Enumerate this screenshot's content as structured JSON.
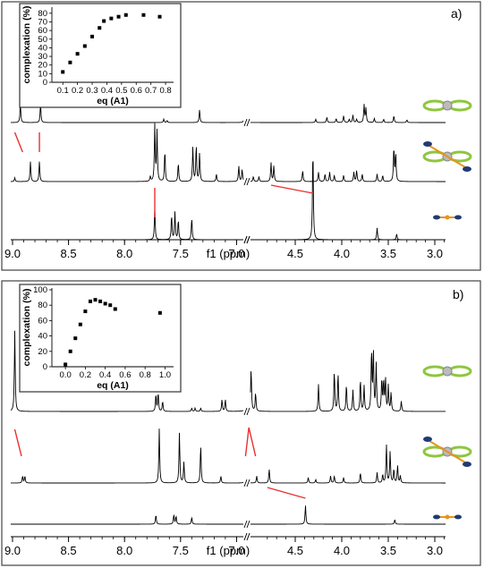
{
  "chart_data": [
    {
      "type": "line",
      "panel": "a)",
      "xlabel": "f1 (ppm)",
      "x_reversed": true,
      "axis_break": [
        4.85,
        6.65
      ],
      "xticks": [
        9.0,
        8.5,
        8.0,
        7.5,
        7.0,
        6.5,
        4.5,
        4.0,
        3.5,
        3.0
      ],
      "xtick_labels": [
        "9.0",
        "8.5",
        "8.0",
        "7.5",
        "7.0",
        "f1 (ppm)",
        "4.5",
        "4.0",
        "3.5",
        "3.0"
      ],
      "series": [
        {
          "peaks": [
            {
              "x": 8.93,
              "h": 0.55
            },
            {
              "x": 8.75,
              "h": 0.55
            },
            {
              "x": 7.65,
              "h": 0.1
            },
            {
              "x": 7.62,
              "h": 0.06
            },
            {
              "x": 7.33,
              "h": 0.38
            },
            {
              "x": 6.93,
              "h": 0.3
            },
            {
              "x": 4.28,
              "h": 0.1
            },
            {
              "x": 4.16,
              "h": 0.16
            },
            {
              "x": 4.06,
              "h": 0.12
            },
            {
              "x": 3.98,
              "h": 0.2
            },
            {
              "x": 3.92,
              "h": 0.1
            },
            {
              "x": 3.88,
              "h": 0.22
            },
            {
              "x": 3.84,
              "h": 0.1
            },
            {
              "x": 3.76,
              "h": 0.52
            },
            {
              "x": 3.74,
              "h": 0.42
            },
            {
              "x": 3.65,
              "h": 0.12
            },
            {
              "x": 3.55,
              "h": 0.1
            },
            {
              "x": 3.44,
              "h": 0.2
            },
            {
              "x": 3.3,
              "h": 0.08
            }
          ]
        },
        {
          "peaks": [
            {
              "x": 8.98,
              "h": 0.06
            },
            {
              "x": 8.84,
              "h": 0.32
            },
            {
              "x": 8.76,
              "h": 0.32
            },
            {
              "x": 7.77,
              "h": 0.08
            },
            {
              "x": 7.73,
              "h": 0.9
            },
            {
              "x": 7.71,
              "h": 0.8
            },
            {
              "x": 7.64,
              "h": 0.5
            },
            {
              "x": 7.52,
              "h": 0.3
            },
            {
              "x": 7.39,
              "h": 0.55
            },
            {
              "x": 7.36,
              "h": 0.58
            },
            {
              "x": 7.33,
              "h": 0.45
            },
            {
              "x": 7.18,
              "h": 0.12
            },
            {
              "x": 6.98,
              "h": 0.25
            },
            {
              "x": 6.95,
              "h": 0.2
            },
            {
              "x": 6.85,
              "h": 0.08
            },
            {
              "x": 6.8,
              "h": 0.08
            },
            {
              "x": 4.76,
              "h": 0.3
            },
            {
              "x": 4.73,
              "h": 0.25
            },
            {
              "x": 4.42,
              "h": 0.18
            },
            {
              "x": 4.25,
              "h": 0.15
            },
            {
              "x": 4.18,
              "h": 0.12
            },
            {
              "x": 4.13,
              "h": 0.15
            },
            {
              "x": 4.08,
              "h": 0.1
            },
            {
              "x": 3.98,
              "h": 0.1
            },
            {
              "x": 3.87,
              "h": 0.15
            },
            {
              "x": 3.84,
              "h": 0.18
            },
            {
              "x": 3.78,
              "h": 0.12
            },
            {
              "x": 3.62,
              "h": 0.12
            },
            {
              "x": 3.56,
              "h": 0.1
            },
            {
              "x": 3.44,
              "h": 0.55
            },
            {
              "x": 3.42,
              "h": 0.45
            }
          ]
        },
        {
          "peaks": [
            {
              "x": 7.73,
              "h": 0.32
            },
            {
              "x": 7.58,
              "h": 0.25
            },
            {
              "x": 7.55,
              "h": 0.28
            },
            {
              "x": 7.52,
              "h": 0.2
            },
            {
              "x": 7.4,
              "h": 0.22
            },
            {
              "x": 4.31,
              "h": 0.95
            },
            {
              "x": 3.62,
              "h": 0.12
            },
            {
              "x": 3.41,
              "h": 0.06
            }
          ]
        }
      ],
      "connectors": [
        {
          "from": 8.98,
          "to": 8.91
        },
        {
          "from": 8.76,
          "to": 8.76
        },
        {
          "from": 7.73,
          "to": 7.73
        },
        {
          "from": 4.76,
          "to": 4.31
        }
      ],
      "inset": {
        "type": "scatter",
        "xlabel": "eq (A1)",
        "ylabel": "complexation (%)",
        "xlim": [
          0.05,
          0.83
        ],
        "ylim": [
          0,
          85
        ],
        "xticks": [
          "0.1",
          "0.2",
          "0.3",
          "0.4",
          "0.5",
          "0.6",
          "0.7",
          "0.8"
        ],
        "yticks": [
          "0",
          "10",
          "20",
          "30",
          "40",
          "50",
          "60",
          "70",
          "80"
        ],
        "x": [
          0.1,
          0.15,
          0.2,
          0.25,
          0.3,
          0.35,
          0.38,
          0.43,
          0.48,
          0.53,
          0.65,
          0.76
        ],
        "y": [
          12,
          23,
          33,
          42,
          53,
          63,
          71,
          74,
          76,
          78,
          78,
          76
        ]
      }
    },
    {
      "type": "line",
      "panel": "b)",
      "xlabel": "f1 (ppm)",
      "x_reversed": true,
      "axis_break": [
        4.85,
        6.65
      ],
      "xticks": [
        9.0,
        8.5,
        8.0,
        7.5,
        7.0,
        6.5,
        4.5,
        4.0,
        3.5,
        3.0
      ],
      "xtick_labels": [
        "9.0",
        "8.5",
        "8.0",
        "7.5",
        "7.0",
        "f1 (ppm)",
        "4.5",
        "4.0",
        "3.5",
        "3.0"
      ],
      "series": [
        {
          "peaks": [
            {
              "x": 8.98,
              "h": 0.95
            },
            {
              "x": 7.72,
              "h": 0.2
            },
            {
              "x": 7.7,
              "h": 0.22
            },
            {
              "x": 7.66,
              "h": 0.12
            },
            {
              "x": 7.4,
              "h": 0.04
            },
            {
              "x": 7.37,
              "h": 0.04
            },
            {
              "x": 7.32,
              "h": 0.04
            },
            {
              "x": 7.13,
              "h": 0.14
            },
            {
              "x": 7.1,
              "h": 0.14
            },
            {
              "x": 6.9,
              "h": 0.72
            },
            {
              "x": 6.87,
              "h": 0.5
            },
            {
              "x": 6.83,
              "h": 0.22
            },
            {
              "x": 4.25,
              "h": 0.32
            },
            {
              "x": 4.08,
              "h": 0.48
            },
            {
              "x": 4.04,
              "h": 0.45
            },
            {
              "x": 3.95,
              "h": 0.32
            },
            {
              "x": 3.88,
              "h": 0.25
            },
            {
              "x": 3.8,
              "h": 0.38
            },
            {
              "x": 3.76,
              "h": 0.3
            },
            {
              "x": 3.68,
              "h": 0.72
            },
            {
              "x": 3.66,
              "h": 0.7
            },
            {
              "x": 3.63,
              "h": 0.55
            },
            {
              "x": 3.57,
              "h": 0.38
            },
            {
              "x": 3.55,
              "h": 0.35
            },
            {
              "x": 3.53,
              "h": 0.38
            },
            {
              "x": 3.5,
              "h": 0.3
            },
            {
              "x": 3.47,
              "h": 0.22
            },
            {
              "x": 3.36,
              "h": 0.12
            }
          ]
        },
        {
          "peaks": [
            {
              "x": 8.91,
              "h": 0.1
            },
            {
              "x": 8.89,
              "h": 0.1
            },
            {
              "x": 7.69,
              "h": 0.78
            },
            {
              "x": 7.51,
              "h": 0.72
            },
            {
              "x": 7.47,
              "h": 0.3
            },
            {
              "x": 7.32,
              "h": 0.55
            },
            {
              "x": 7.14,
              "h": 0.1
            },
            {
              "x": 6.92,
              "h": 0.2
            },
            {
              "x": 6.82,
              "h": 0.1
            },
            {
              "x": 4.78,
              "h": 0.2
            },
            {
              "x": 4.36,
              "h": 0.08
            },
            {
              "x": 4.28,
              "h": 0.05
            },
            {
              "x": 4.12,
              "h": 0.1
            },
            {
              "x": 4.08,
              "h": 0.1
            },
            {
              "x": 3.98,
              "h": 0.08
            },
            {
              "x": 3.8,
              "h": 0.15
            },
            {
              "x": 3.62,
              "h": 0.15
            },
            {
              "x": 3.56,
              "h": 0.12
            },
            {
              "x": 3.52,
              "h": 0.55
            },
            {
              "x": 3.48,
              "h": 0.45
            },
            {
              "x": 3.44,
              "h": 0.2
            },
            {
              "x": 3.4,
              "h": 0.25
            },
            {
              "x": 3.37,
              "h": 0.1
            }
          ]
        },
        {
          "peaks": [
            {
              "x": 7.72,
              "h": 0.14
            },
            {
              "x": 7.56,
              "h": 0.14
            },
            {
              "x": 7.54,
              "h": 0.12
            },
            {
              "x": 7.4,
              "h": 0.1
            },
            {
              "x": 4.39,
              "h": 0.28
            },
            {
              "x": 3.43,
              "h": 0.07
            }
          ]
        }
      ],
      "connectors": [
        {
          "from": 8.98,
          "to": 8.92
        },
        {
          "from": 6.89,
          "to": 6.92
        },
        {
          "from": 6.89,
          "to": 6.83
        },
        {
          "from": 4.8,
          "to": 4.39
        }
      ],
      "inset": {
        "type": "scatter",
        "xlabel": "eq (A1)",
        "ylabel": "complexation (%)",
        "xlim": [
          -0.1,
          1.05
        ],
        "ylim": [
          0,
          100
        ],
        "xticks": [
          "0.0",
          "0.2",
          "0.4",
          "0.6",
          "0.8",
          "1.0"
        ],
        "yticks": [
          "0",
          "20",
          "40",
          "60",
          "80",
          "100"
        ],
        "x": [
          0.0,
          0.05,
          0.1,
          0.15,
          0.2,
          0.25,
          0.3,
          0.35,
          0.4,
          0.45,
          0.5,
          0.95
        ],
        "y": [
          3,
          20,
          37,
          55,
          72,
          85,
          87,
          85,
          82,
          80,
          75,
          70
        ]
      }
    }
  ],
  "molecule_icons": [
    "host-macrocycle-icon",
    "complex-icon",
    "guest-icon"
  ],
  "colors": {
    "connector": "#e8312f",
    "spectrum": "#000000",
    "icon_green": "#8ec63f",
    "icon_blue": "#1f3b74",
    "icon_orange": "#e6941f"
  }
}
